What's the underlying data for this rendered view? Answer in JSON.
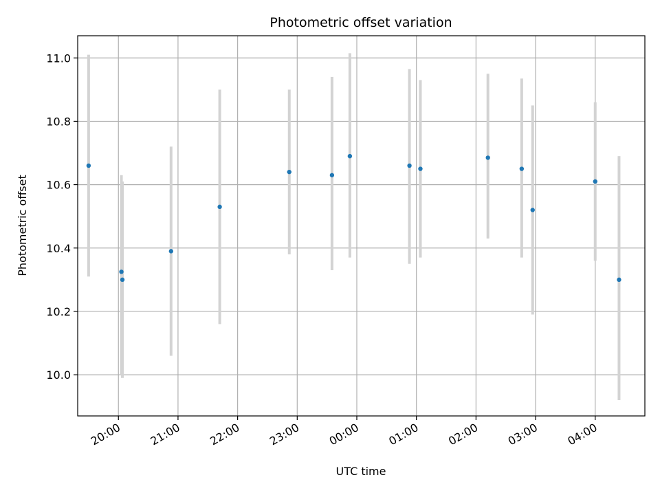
{
  "chart_data": {
    "type": "scatter",
    "title": "Photometric offset variation",
    "xlabel": "UTC time",
    "ylabel": "Photometric offset",
    "x_axis_kind": "time (hours, UTC)",
    "xlim": [
      "19:19",
      "04:50"
    ],
    "ylim": [
      9.87,
      11.07
    ],
    "grid": true,
    "legend": "none",
    "x_ticks": [
      "20:00",
      "21:00",
      "22:00",
      "23:00",
      "00:00",
      "01:00",
      "02:00",
      "03:00",
      "04:00"
    ],
    "y_ticks": [
      "10.0",
      "10.2",
      "10.4",
      "10.6",
      "10.8",
      "11.0"
    ],
    "colors": {
      "point": "#1f77b4",
      "errorbar": "#d3d3d3",
      "grid": "#b0b0b0"
    },
    "points": [
      {
        "time": "19:30",
        "y": 10.66,
        "ylow": 10.31,
        "yhigh": 11.01
      },
      {
        "time": "20:03",
        "y": 10.325,
        "ylow": 10.0,
        "yhigh": 10.63
      },
      {
        "time": "20:04",
        "y": 10.3,
        "ylow": 9.99,
        "yhigh": 10.61
      },
      {
        "time": "20:53",
        "y": 10.39,
        "ylow": 10.06,
        "yhigh": 10.72
      },
      {
        "time": "21:42",
        "y": 10.53,
        "ylow": 10.16,
        "yhigh": 10.9
      },
      {
        "time": "22:52",
        "y": 10.64,
        "ylow": 10.38,
        "yhigh": 10.9
      },
      {
        "time": "23:35",
        "y": 10.63,
        "ylow": 10.33,
        "yhigh": 10.94
      },
      {
        "time": "23:53",
        "y": 10.69,
        "ylow": 10.37,
        "yhigh": 11.015
      },
      {
        "time": "00:53",
        "y": 10.66,
        "ylow": 10.35,
        "yhigh": 10.965
      },
      {
        "time": "01:04",
        "y": 10.65,
        "ylow": 10.37,
        "yhigh": 10.93
      },
      {
        "time": "02:12",
        "y": 10.685,
        "ylow": 10.43,
        "yhigh": 10.95
      },
      {
        "time": "02:46",
        "y": 10.65,
        "ylow": 10.37,
        "yhigh": 10.935
      },
      {
        "time": "02:57",
        "y": 10.52,
        "ylow": 10.19,
        "yhigh": 10.85
      },
      {
        "time": "04:00",
        "y": 10.61,
        "ylow": 10.36,
        "yhigh": 10.86
      },
      {
        "time": "04:24",
        "y": 10.3,
        "ylow": 9.92,
        "yhigh": 10.69
      }
    ]
  }
}
